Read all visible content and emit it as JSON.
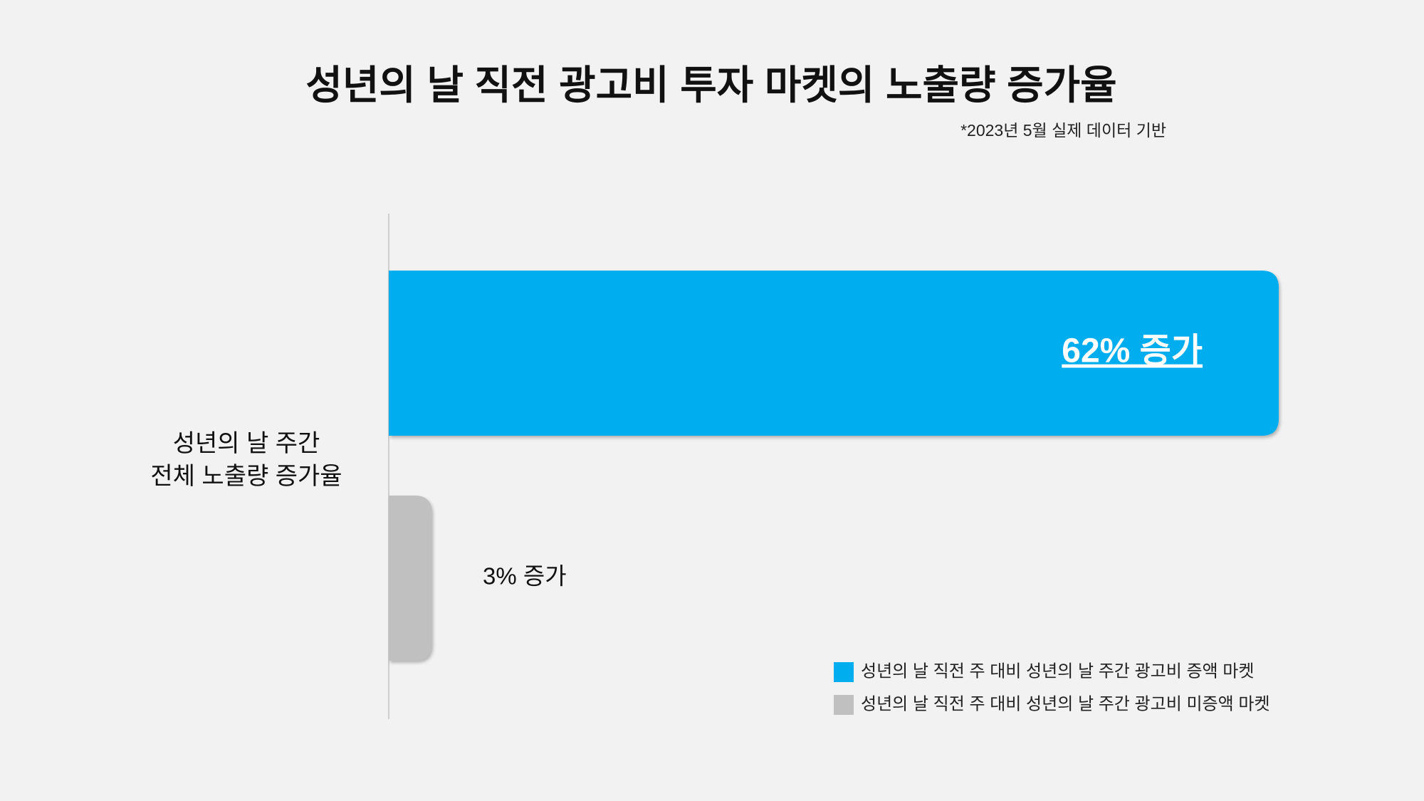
{
  "chart_data": {
    "type": "bar",
    "title": "성년의 날 직전 광고비 투자 마켓의 노출량 증가율",
    "subtitle": "*2023년 5월 실제 데이터 기반",
    "categories": [
      "성년의 날 주간\n전체 노출량 증가율"
    ],
    "series": [
      {
        "name": "성년의 날 직전 주 대비 성년의 날 주간 광고비 증액 마켓",
        "color": "#00aeef",
        "values": [
          62
        ],
        "value_labels": [
          "62% 증가"
        ]
      },
      {
        "name": "성년의 날 직전 주 대비 성년의 날 주간 광고비 미증액 마켓",
        "color": "#c0c0c0",
        "values": [
          3
        ],
        "value_labels": [
          "3% 증가"
        ]
      }
    ]
  }
}
